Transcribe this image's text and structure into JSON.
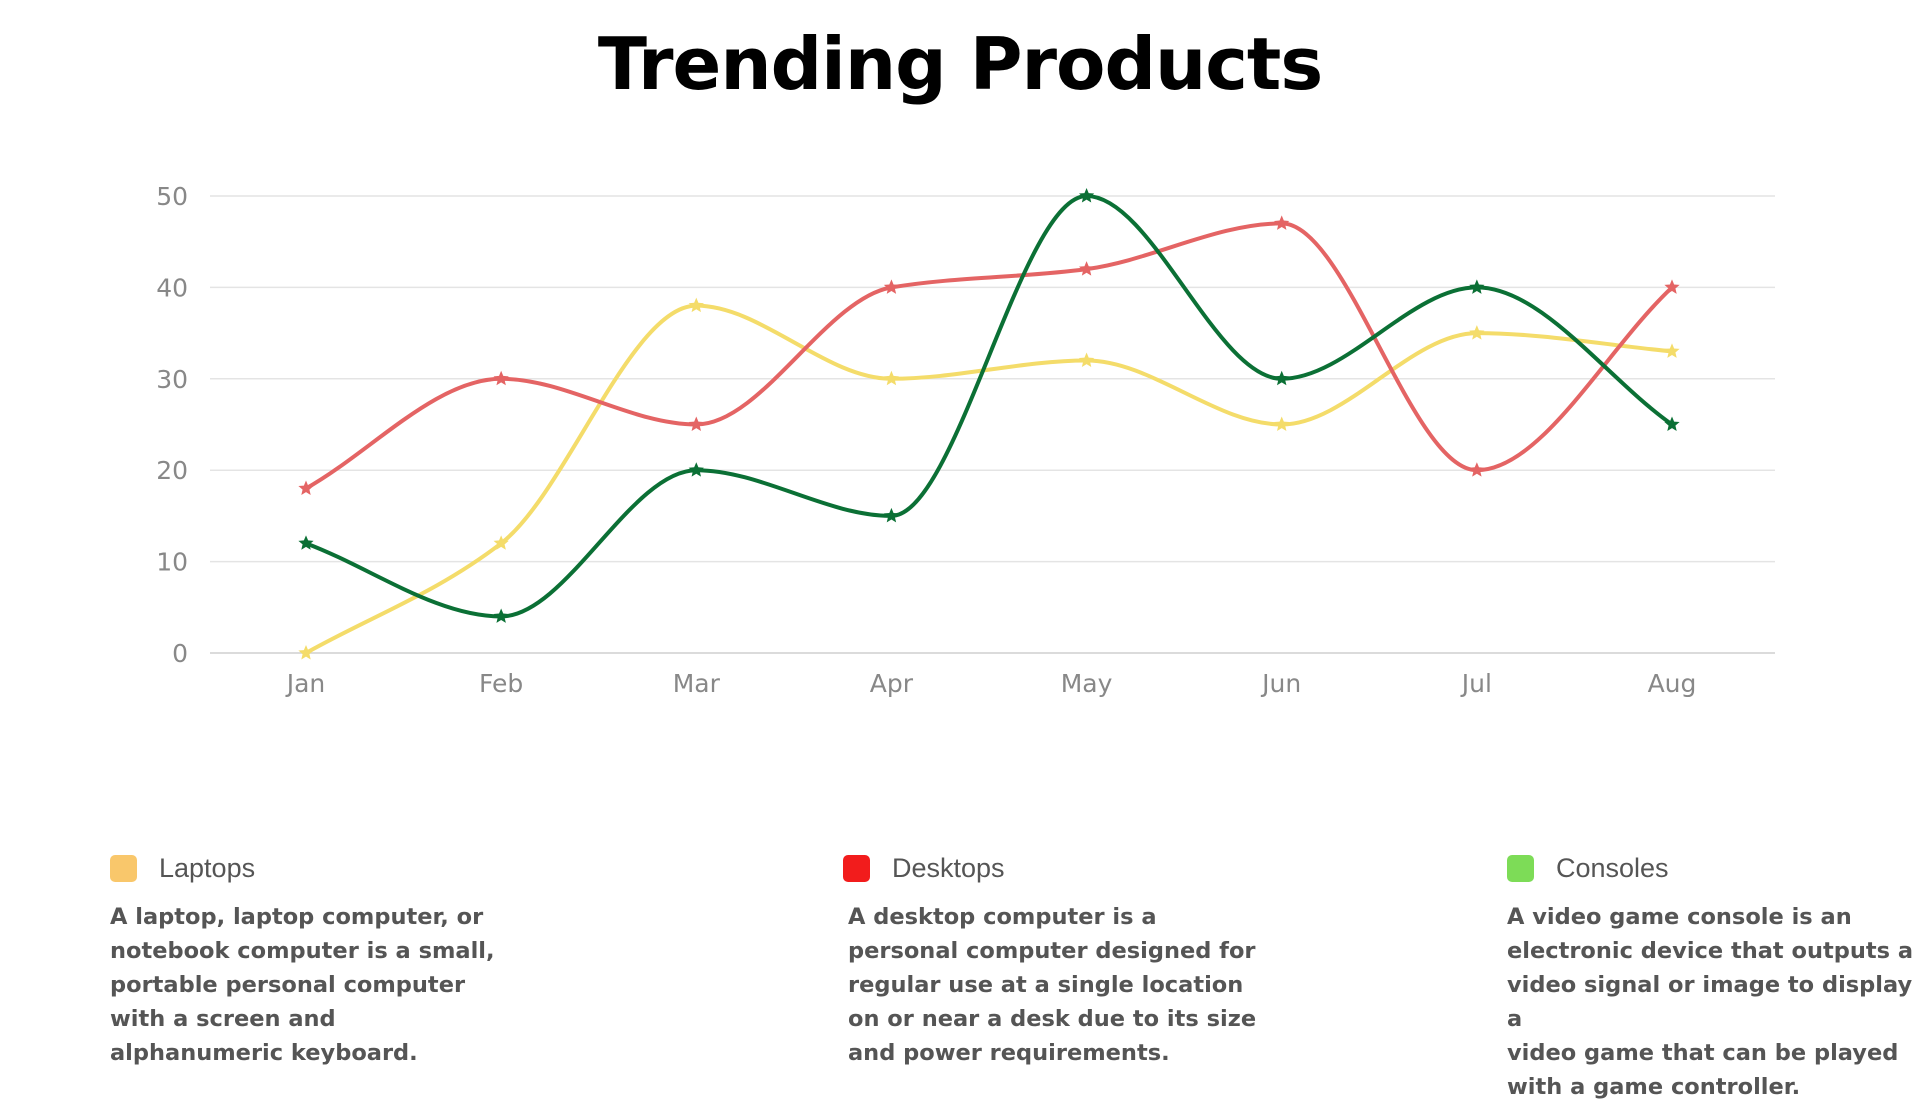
{
  "title": "Trending Products",
  "chart_data": {
    "type": "line",
    "categories": [
      "Jan",
      "Feb",
      "Mar",
      "Apr",
      "May",
      "Jun",
      "Jul",
      "Aug"
    ],
    "series": [
      {
        "name": "Laptops",
        "color": "#f4dc6a",
        "marker": "star",
        "values": [
          0,
          12,
          38,
          30,
          32,
          25,
          35,
          33
        ]
      },
      {
        "name": "Desktops",
        "color": "#e46464",
        "marker": "star",
        "values": [
          18,
          30,
          25,
          40,
          42,
          47,
          20,
          40
        ]
      },
      {
        "name": "Consoles",
        "color": "#0b7035",
        "marker": "star",
        "values": [
          12,
          4,
          20,
          15,
          50,
          30,
          40,
          25
        ]
      }
    ],
    "yticks": [
      0,
      10,
      20,
      30,
      40,
      50
    ],
    "ylim": [
      0,
      50
    ],
    "grid": true,
    "smooth": true,
    "legend": "bottom"
  },
  "legend": [
    {
      "name": "Laptops",
      "swatch_color": "#f9c76b",
      "description": "A laptop, laptop computer, or\nnotebook computer is a small,\nportable personal computer\nwith a screen and\nalphanumeric keyboard."
    },
    {
      "name": "Desktops",
      "swatch_color": "#f21c1c",
      "description": "A desktop computer is a\npersonal computer designed for\nregular use at a single location\non or near a desk due to its size\nand power requirements."
    },
    {
      "name": "Consoles",
      "swatch_color": "#7ddc57",
      "description": "A video game console is an\nelectronic device that outputs a\nvideo signal or image to display a\nvideo game that can be played\nwith a game controller."
    }
  ]
}
